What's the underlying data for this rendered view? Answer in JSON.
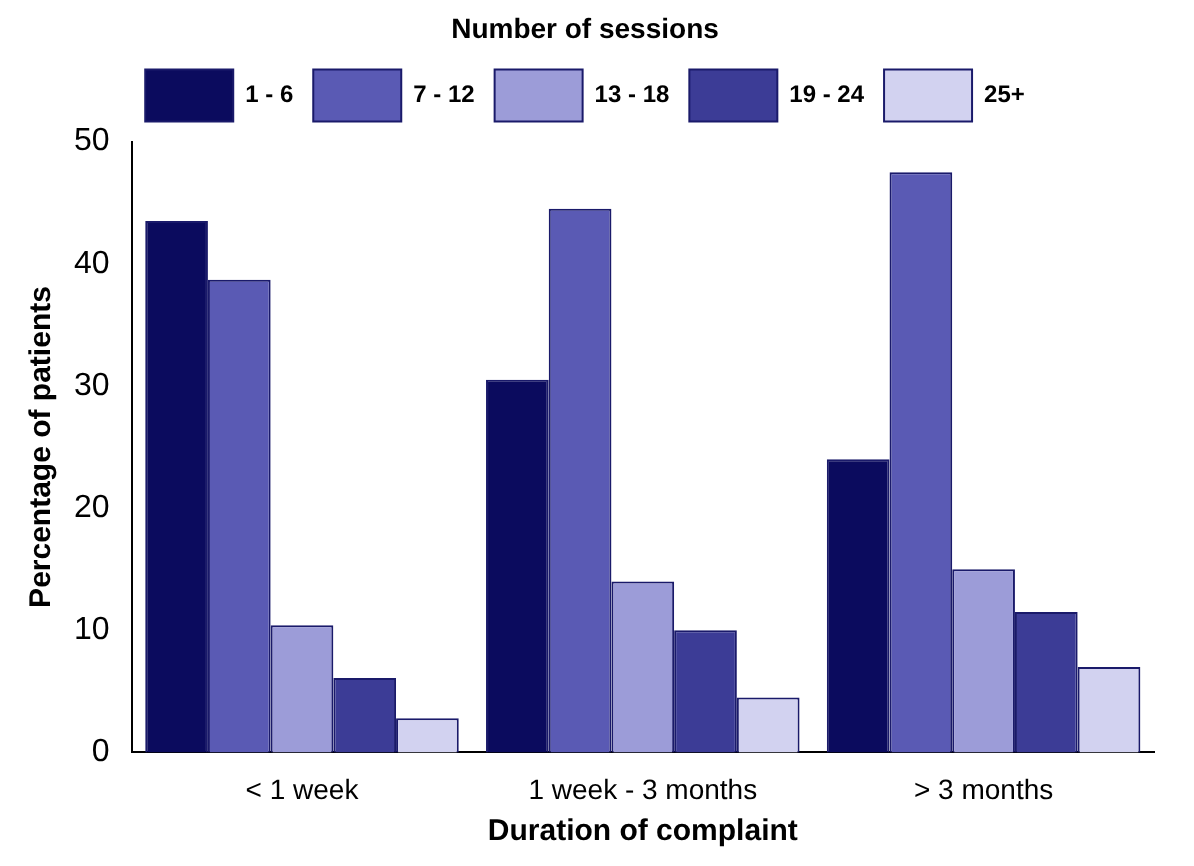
{
  "chart_data": {
    "type": "bar",
    "legend_title": "Number of sessions",
    "xlabel": "Duration of complaint",
    "ylabel": "Percentage of patients",
    "categories": [
      "< 1 week",
      "1 week - 3 months",
      "> 3 months"
    ],
    "series": [
      {
        "name": "1 - 6",
        "color": "#0b0b5e",
        "values": [
          43.5,
          30.5,
          24
        ]
      },
      {
        "name": "7 - 12",
        "color": "#5a5ab4",
        "values": [
          38.7,
          44.5,
          47.5
        ]
      },
      {
        "name": "13 - 18",
        "color": "#9c9cd8",
        "values": [
          10.4,
          14,
          15
        ]
      },
      {
        "name": "19 - 24",
        "color": "#3c3c96",
        "values": [
          6.1,
          10,
          11.5
        ]
      },
      {
        "name": "25+",
        "color": "#d2d2f0",
        "values": [
          2.8,
          4.5,
          7
        ]
      }
    ],
    "ylim": [
      0,
      50
    ],
    "yticks": [
      0,
      10,
      20,
      30,
      40,
      50
    ],
    "grid": false,
    "legend": "top"
  }
}
